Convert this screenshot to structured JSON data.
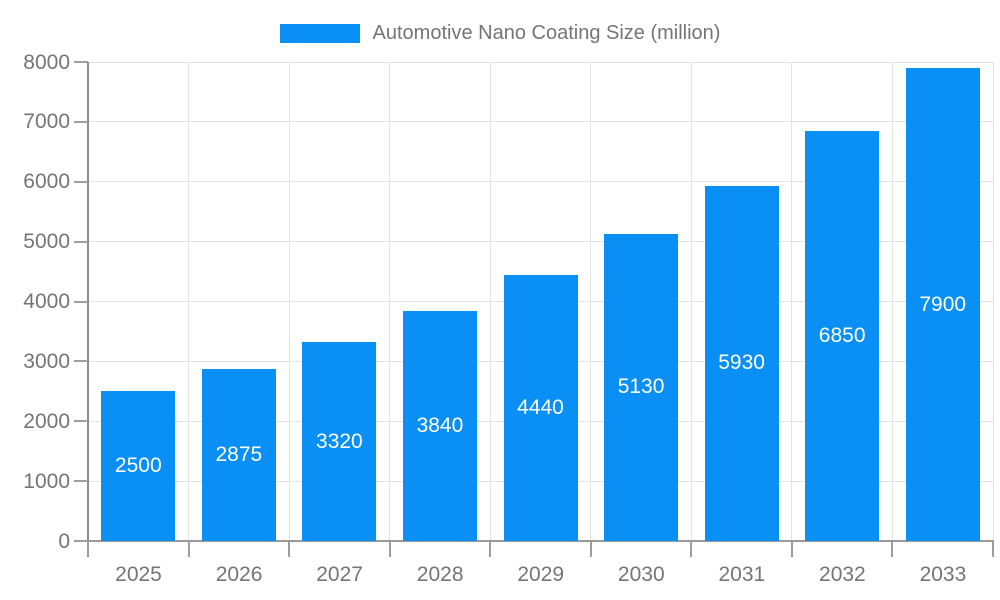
{
  "legend": {
    "label": "Automotive Nano Coating Size (million)"
  },
  "colors": {
    "bar": "#0a8ff4",
    "bar_label": "#ffffff",
    "axis_text": "#757575",
    "grid": "#e3e3e3",
    "axis_line_left": "#8c8c8c",
    "axis_line_bottom": "#9a9a9a",
    "tick": "#9e9e9e"
  },
  "chart_data": {
    "type": "bar",
    "title": "Automotive Nano Coating Size (million)",
    "categories": [
      "2025",
      "2026",
      "2027",
      "2028",
      "2029",
      "2030",
      "2031",
      "2032",
      "2033"
    ],
    "values": [
      2500,
      2875,
      3320,
      3840,
      4440,
      5130,
      5930,
      6850,
      7900
    ],
    "xlabel": "",
    "ylabel": "",
    "ylim": [
      0,
      8000
    ],
    "ytick_step": 1000,
    "ytick_labels": [
      "0",
      "1000",
      "2000",
      "3000",
      "4000",
      "5000",
      "6000",
      "7000",
      "8000"
    ],
    "grid": true,
    "legend_position": "top-center",
    "bar_value_labels_inside": true
  }
}
